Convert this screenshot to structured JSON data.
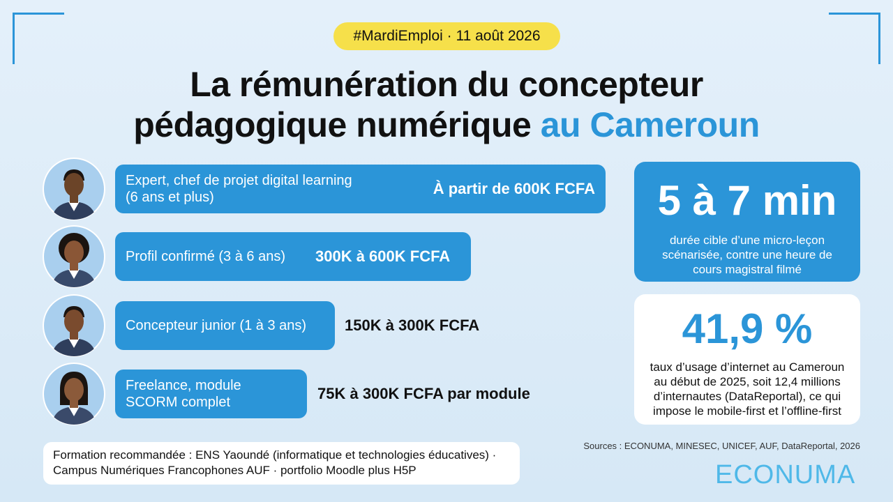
{
  "header": {
    "tag": "#MardiEmploi · 11 août 2026",
    "title_lines": [
      "La rémunération du concepteur",
      "pédagogique numérique"
    ],
    "title_highlight": "au Cameroun"
  },
  "rows": [
    {
      "label_lines": [
        "Expert, chef de projet digital learning",
        "(6 ans et plus)"
      ],
      "salary": "À partir de 600K FCFA"
    },
    {
      "label_lines": [
        "Profil confirmé (3 à 6 ans)"
      ],
      "salary": "300K à 600K FCFA"
    },
    {
      "label_lines": [
        "Concepteur junior (1 à 3 ans)"
      ],
      "salary": "150K à 300K FCFA"
    },
    {
      "label_lines": [
        "Freelance, module",
        "SCORM complet"
      ],
      "salary": "75K à 300K FCFA par module"
    }
  ],
  "stats": [
    {
      "value": "5 à 7 min",
      "description_lines": [
        "durée cible d’une micro-leçon",
        "scénarisée, contre une heure de",
        "cours magistral filmé"
      ]
    },
    {
      "value": "41,9 %",
      "description_lines": [
        "taux d’usage d’internet au Cameroun",
        "au début de 2025, soit 12,4 millions",
        "d’internautes (DataReportal), ce qui",
        "impose le mobile-first et l’offline-first"
      ]
    }
  ],
  "footer": {
    "formation_lines": [
      "Formation recommandée : ENS Yaoundé (informatique et technologies éducatives) ·",
      "Campus Numériques Francophones AUF · portfolio Moodle plus H5P"
    ],
    "sources": "Sources : ECONUMA, MINESEC, UNICEF, AUF, DataReportal, 2026",
    "brand": "ECONUMA"
  }
}
